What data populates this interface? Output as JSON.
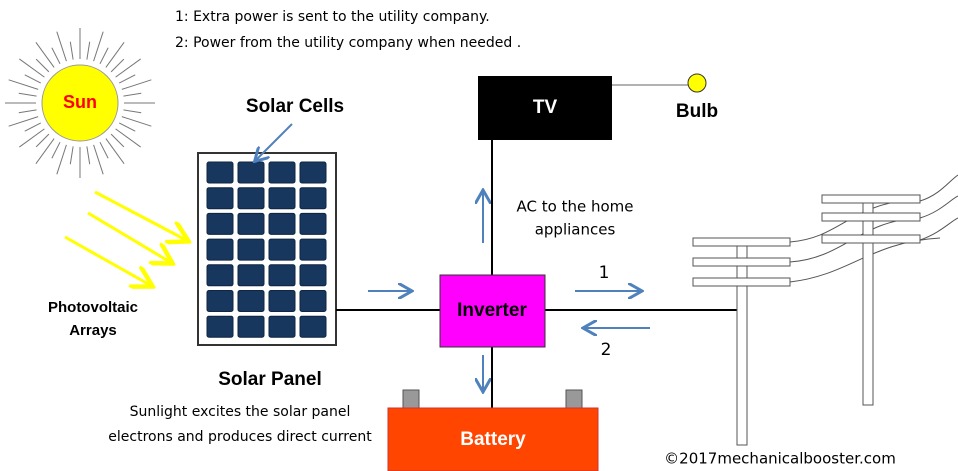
{
  "notes": [
    "1: Extra power is sent to the utility company.",
    "2: Power from the utility company when needed ."
  ],
  "labels": {
    "sun": "Sun",
    "solar_cells": "Solar Cells",
    "tv": "TV",
    "bulb": "Bulb",
    "ac_note": [
      "AC to the home",
      "appliances"
    ],
    "photovoltaic": [
      "Photovoltaic",
      "Arrays"
    ],
    "inverter": "Inverter",
    "flow_out": "1",
    "flow_in": "2",
    "solar_panel": "Solar Panel",
    "sunlight_note": [
      "Sunlight excites the solar panel",
      "electrons and produces direct current"
    ],
    "battery": "Battery",
    "copyright": "©2017mechanicalbooster.com"
  }
}
